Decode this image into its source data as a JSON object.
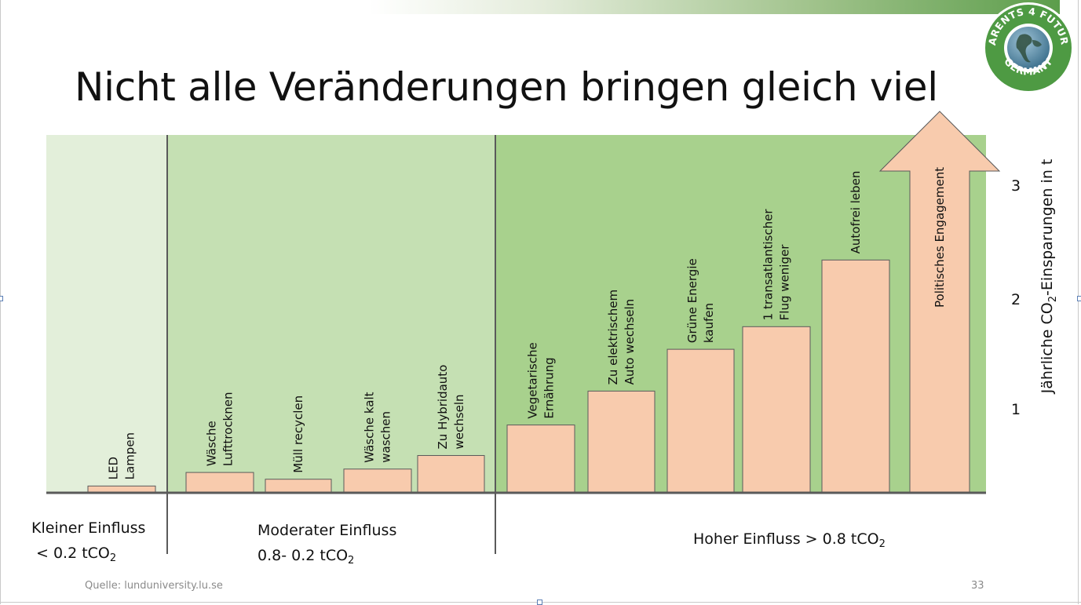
{
  "slide": {
    "title": "Nicht alle Veränderungen bringen gleich viel",
    "source": "Quelle: lunduniversity.lu.se",
    "page_number": "33",
    "logo": {
      "top_text": "PARENTS 4 FUTURE",
      "bottom_text": "GERMANY",
      "icon": "globe-icon",
      "ring_color": "#4e9a43"
    }
  },
  "colors": {
    "zone_small": "#e3efda",
    "zone_moderate": "#c5e0b3",
    "zone_high": "#a8d18d",
    "bar_fill": "#f8cbad",
    "bar_stroke": "#5a5a5a",
    "divider": "#5a5a5a"
  },
  "zones": [
    {
      "name": "Kleiner Einfluss",
      "range_prefix": "< 0.2 tCO",
      "range_sub": "2",
      "range_suffix": ""
    },
    {
      "name": "Moderater Einfluss",
      "range_prefix": "0.8- 0.2 tCO",
      "range_sub": "2",
      "range_suffix": ""
    },
    {
      "name": "Hoher Einfluss",
      "range_prefix": "Hoher Einfluss > 0.8 tCO",
      "range_sub": "2",
      "range_suffix": ""
    }
  ],
  "chart_data": {
    "type": "bar",
    "categories": [
      [
        "LED",
        "Lampen"
      ],
      [
        "Wäsche",
        "Lufttrocknen"
      ],
      [
        "Müll recyclen"
      ],
      [
        "Wäsche kalt",
        "waschen"
      ],
      [
        "Zu Hybridauto",
        "wechseln"
      ],
      [
        "Vegetarische",
        "Ernährung"
      ],
      [
        "Zu elektrischem",
        "Auto wechseln"
      ],
      [
        "Grüne Energie",
        "kaufen"
      ],
      [
        "1 transatlantischer",
        "Flug weniger"
      ],
      [
        "Autofrei leben"
      ],
      [
        "Politisches Engagement"
      ]
    ],
    "values": [
      0.06,
      0.18,
      0.12,
      0.21,
      0.33,
      0.6,
      0.9,
      1.27,
      1.47,
      2.06,
      3.2
    ],
    "arrow_last": true,
    "y_ticks": [
      1,
      2,
      3
    ],
    "y_ticks_labels": [
      "1",
      "2",
      "3"
    ],
    "ylabel_prefix": "Jährliche  CO",
    "ylabel_sub": "2",
    "ylabel_suffix": "-Einsparungen in t",
    "ylim": [
      0,
      3.2
    ],
    "grid": false
  }
}
